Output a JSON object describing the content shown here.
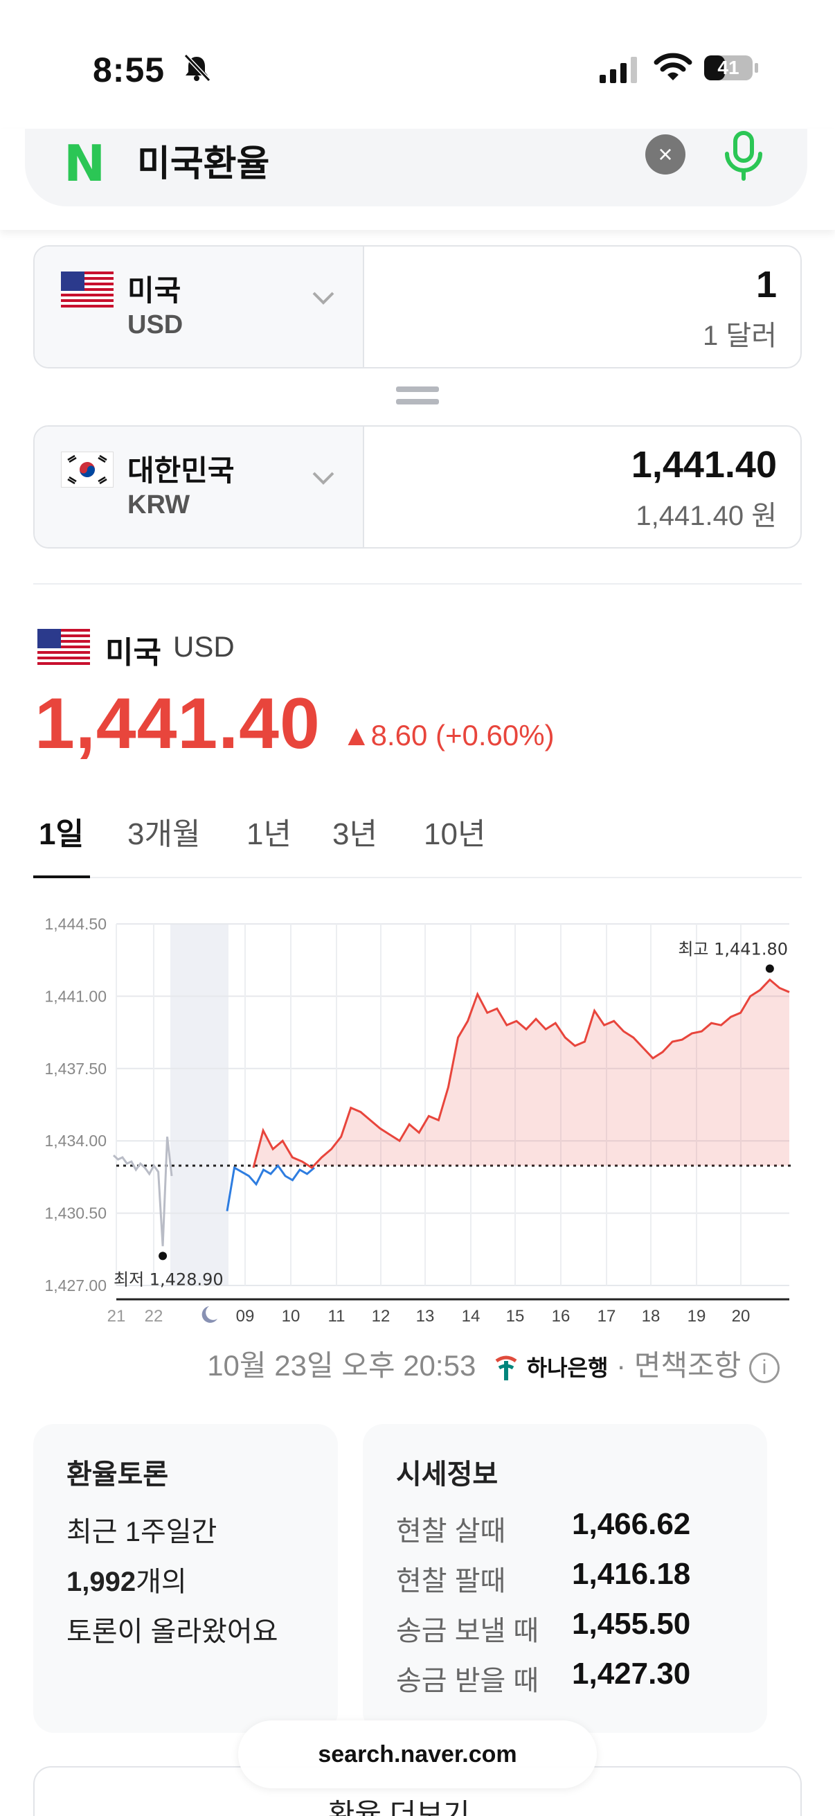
{
  "status": {
    "time": "8:55",
    "battery": "41"
  },
  "search": {
    "logo": "N",
    "query": "미국환율",
    "clear_icon": "×"
  },
  "converter": {
    "from": {
      "name": "미국",
      "code": "USD",
      "value": "1",
      "sub": "1 달러"
    },
    "to": {
      "name": "대한민국",
      "code": "KRW",
      "value": "1,441.40",
      "sub": "1,441.40 원"
    }
  },
  "summary": {
    "name": "미국",
    "code": "USD",
    "rate": "1,441.40",
    "change": "▲8.60 (+0.60%)"
  },
  "tabs": [
    "1일",
    "3개월",
    "1년",
    "3년",
    "10년"
  ],
  "chart_data": {
    "type": "line",
    "title": "",
    "xlabel": "",
    "ylabel": "",
    "ylim": [
      1427.0,
      1444.5
    ],
    "y_ticks": [
      "1,444.50",
      "1,441.00",
      "1,437.50",
      "1,434.00",
      "1,430.50",
      "1,427.00"
    ],
    "x_ticks": [
      "21",
      "22",
      "09",
      "10",
      "11",
      "12",
      "13",
      "14",
      "15",
      "16",
      "17",
      "18",
      "19",
      "20"
    ],
    "baseline": 1432.8,
    "high_label": "최고 1,441.80",
    "low_label": "최저 1,428.90",
    "series": [
      {
        "values": [
          1433.3,
          1433.1,
          1433.2,
          1432.9,
          1433.0,
          1432.6,
          1432.9,
          1432.7,
          1432.4,
          1432.8,
          1432.5,
          1428.9,
          1434.2,
          1432.3
        ]
      },
      {
        "values": [
          1430.6,
          1432.7,
          1432.5,
          1432.3,
          1431.9,
          1432.6,
          1432.4,
          1432.8,
          1432.3,
          1432.1,
          1432.6,
          1432.4,
          1432.7
        ]
      },
      {
        "values": [
          1432.7,
          1434.5,
          1433.6,
          1434.0,
          1433.2,
          1433.0,
          1432.7,
          1433.2,
          1433.6,
          1434.2,
          1435.6,
          1435.4,
          1435.0,
          1434.6,
          1434.3,
          1434.0,
          1434.8,
          1434.4,
          1435.2,
          1435.0,
          1436.6,
          1439.0,
          1439.8,
          1441.1,
          1440.2,
          1440.4,
          1439.6,
          1439.8,
          1439.4,
          1439.9,
          1439.4,
          1439.7,
          1439.0,
          1438.6,
          1438.8,
          1440.3,
          1439.6,
          1439.8,
          1439.3,
          1439.0,
          1438.5,
          1438.0,
          1438.3,
          1438.8,
          1438.9,
          1439.2,
          1439.3,
          1439.7,
          1439.6,
          1440.0,
          1440.2,
          1441.0,
          1441.3,
          1441.8,
          1441.4,
          1441.2
        ]
      }
    ]
  },
  "timestamp": {
    "date": "10월 23일 오후 20:53",
    "bank": "하나은행",
    "sep": "·",
    "disclaimer": "면책조항"
  },
  "talk": {
    "title": "환율토론",
    "line1": "최근 1주일간",
    "count": "1,992",
    "count_suffix": "개의",
    "line3": "토론이 올라왔어요"
  },
  "quote": {
    "title": "시세정보",
    "rows": [
      {
        "label": "현찰 살때",
        "value": "1,466.62"
      },
      {
        "label": "현찰 팔때",
        "value": "1,416.18"
      },
      {
        "label": "송금 보낼 때",
        "value": "1,455.50"
      },
      {
        "label": "송금 받을 때",
        "value": "1,427.30"
      }
    ]
  },
  "more_button": "환율 더보기 →",
  "url": "search.naver.com",
  "colors": {
    "up": "#e8453c",
    "down": "#2e7de0",
    "before": "#b9bcc6",
    "naver": "#2bc655"
  }
}
